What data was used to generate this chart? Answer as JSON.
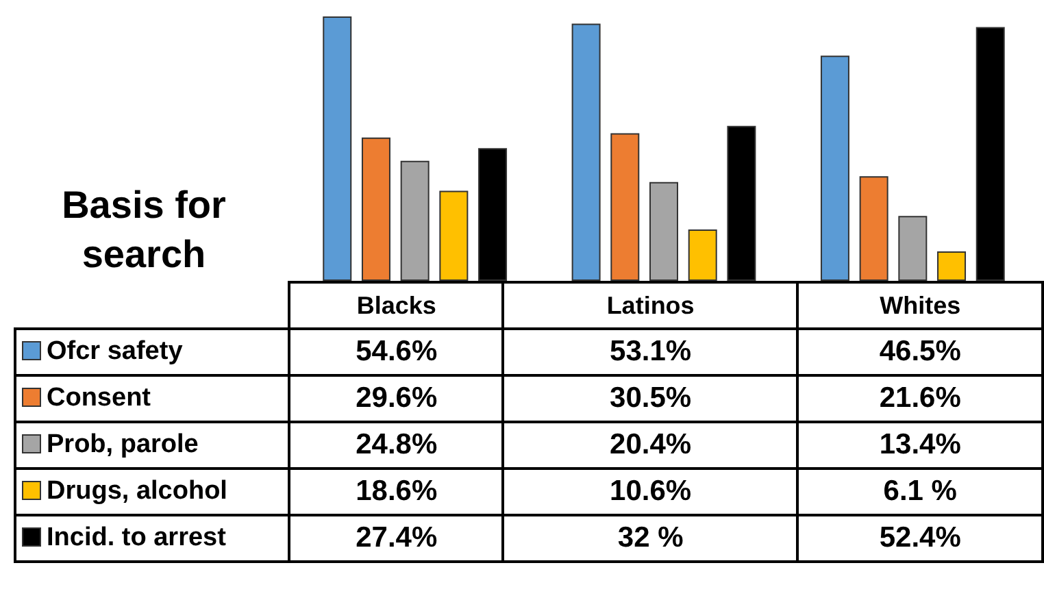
{
  "chart_data": {
    "type": "bar",
    "title": "Basis for search",
    "categories": [
      "Blacks",
      "Latinos",
      "Whites"
    ],
    "legend": "bottom",
    "series": [
      {
        "name": "Ofcr safety",
        "color": "#5b9bd5",
        "values": [
          54.6,
          53.1,
          46.5
        ],
        "value_labels": [
          "54.6%",
          "53.1%",
          "46.5%"
        ]
      },
      {
        "name": "Consent",
        "color": "#ed7d31",
        "values": [
          29.6,
          30.5,
          21.6
        ],
        "value_labels": [
          "29.6%",
          "30.5%",
          "21.6%"
        ]
      },
      {
        "name": "Prob, parole",
        "color": "#a5a5a5",
        "values": [
          24.8,
          20.4,
          13.4
        ],
        "value_labels": [
          "24.8%",
          "20.4%",
          "13.4%"
        ]
      },
      {
        "name": "Drugs, alcohol",
        "color": "#ffc000",
        "values": [
          18.6,
          10.6,
          6.1
        ],
        "value_labels": [
          "18.6%",
          "10.6%",
          "6.1 %"
        ]
      },
      {
        "name": "Incid. to arrest",
        "color": "#000000",
        "values": [
          27.4,
          32,
          52.4
        ],
        "value_labels": [
          "27.4%",
          "32 %",
          "52.4%"
        ]
      }
    ]
  }
}
